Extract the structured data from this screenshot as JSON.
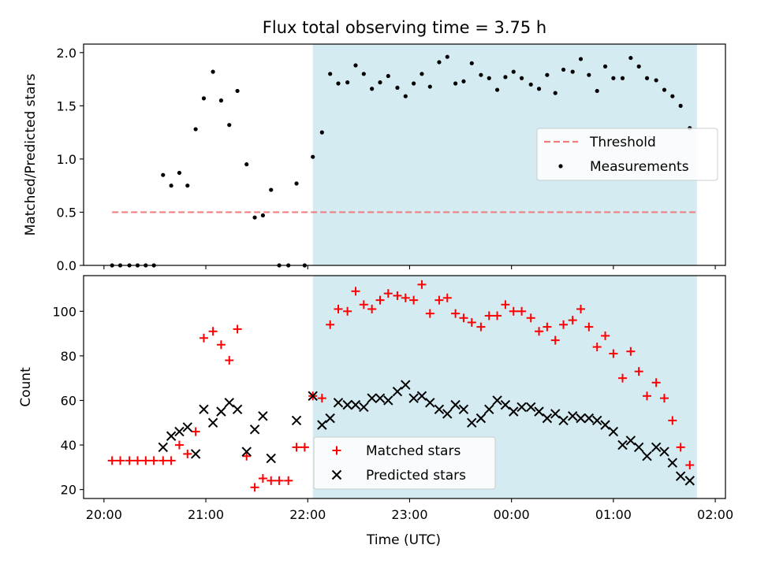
{
  "chart_data": {
    "title": "Flux total observing time = 3.75 h",
    "xlabel": "Time (UTC)",
    "x_unit": "hours past 20:00 UTC",
    "xlim": [
      -0.2,
      6.1
    ],
    "x_ticks": [
      {
        "x": 0,
        "label": "20:00"
      },
      {
        "x": 1,
        "label": "21:00"
      },
      {
        "x": 2,
        "label": "22:00"
      },
      {
        "x": 3,
        "label": "23:00"
      },
      {
        "x": 4,
        "label": "00:00"
      },
      {
        "x": 5,
        "label": "01:00"
      },
      {
        "x": 6,
        "label": "02:00"
      }
    ],
    "shaded_region": {
      "x_start": 2.05,
      "x_end": 5.82,
      "color": "#add8e6"
    },
    "panels": [
      {
        "type": "scatter",
        "ylabel": "Matched/Predicted stars",
        "ylim": [
          0,
          2.08
        ],
        "y_ticks": [
          0.0,
          0.5,
          1.0,
          1.5,
          2.0
        ],
        "y_tick_labels": [
          "0.0",
          "0.5",
          "1.0",
          "1.5",
          "2.0"
        ],
        "legend": {
          "position": "center-right",
          "entries": [
            "Threshold",
            "Measurements"
          ]
        },
        "threshold": {
          "name": "Threshold",
          "y": 0.5,
          "x_start": 0.08,
          "x_end": 5.82,
          "color": "#f08080"
        },
        "series": [
          {
            "name": "Measurements",
            "marker": "dot",
            "color": "#000000",
            "points": [
              [
                0.08,
                0.0
              ],
              [
                0.16,
                0.0
              ],
              [
                0.25,
                0.0
              ],
              [
                0.33,
                0.0
              ],
              [
                0.41,
                0.0
              ],
              [
                0.49,
                0.0
              ],
              [
                0.58,
                0.85
              ],
              [
                0.66,
                0.75
              ],
              [
                0.74,
                0.87
              ],
              [
                0.82,
                0.75
              ],
              [
                0.9,
                1.28
              ],
              [
                0.98,
                1.57
              ],
              [
                1.07,
                1.82
              ],
              [
                1.15,
                1.55
              ],
              [
                1.23,
                1.32
              ],
              [
                1.31,
                1.64
              ],
              [
                1.4,
                0.95
              ],
              [
                1.48,
                0.45
              ],
              [
                1.56,
                0.47
              ],
              [
                1.64,
                0.71
              ],
              [
                1.72,
                0.0
              ],
              [
                1.81,
                0.0
              ],
              [
                1.89,
                0.77
              ],
              [
                1.97,
                0.0
              ],
              [
                2.05,
                1.02
              ],
              [
                2.14,
                1.25
              ],
              [
                2.22,
                1.8
              ],
              [
                2.3,
                1.71
              ],
              [
                2.39,
                1.72
              ],
              [
                2.47,
                1.88
              ],
              [
                2.55,
                1.8
              ],
              [
                2.63,
                1.66
              ],
              [
                2.71,
                1.72
              ],
              [
                2.79,
                1.78
              ],
              [
                2.88,
                1.67
              ],
              [
                2.96,
                1.59
              ],
              [
                3.04,
                1.71
              ],
              [
                3.12,
                1.8
              ],
              [
                3.2,
                1.68
              ],
              [
                3.29,
                1.91
              ],
              [
                3.37,
                1.96
              ],
              [
                3.45,
                1.71
              ],
              [
                3.53,
                1.73
              ],
              [
                3.61,
                1.9
              ],
              [
                3.7,
                1.79
              ],
              [
                3.78,
                1.76
              ],
              [
                3.86,
                1.65
              ],
              [
                3.94,
                1.77
              ],
              [
                4.02,
                1.82
              ],
              [
                4.1,
                1.76
              ],
              [
                4.19,
                1.7
              ],
              [
                4.27,
                1.66
              ],
              [
                4.35,
                1.79
              ],
              [
                4.43,
                1.62
              ],
              [
                4.51,
                1.84
              ],
              [
                4.6,
                1.82
              ],
              [
                4.68,
                1.94
              ],
              [
                4.76,
                1.79
              ],
              [
                4.84,
                1.64
              ],
              [
                4.92,
                1.87
              ],
              [
                5.0,
                1.76
              ],
              [
                5.09,
                1.76
              ],
              [
                5.17,
                1.95
              ],
              [
                5.25,
                1.87
              ],
              [
                5.33,
                1.76
              ],
              [
                5.42,
                1.74
              ],
              [
                5.5,
                1.65
              ],
              [
                5.58,
                1.59
              ],
              [
                5.66,
                1.5
              ],
              [
                5.75,
                1.29
              ]
            ]
          }
        ]
      },
      {
        "type": "scatter",
        "ylabel": "Count",
        "ylim": [
          16,
          116
        ],
        "y_ticks": [
          20,
          40,
          60,
          80,
          100
        ],
        "y_tick_labels": [
          "20",
          "40",
          "60",
          "80",
          "100"
        ],
        "legend": {
          "position": "lower-center",
          "entries": [
            "Matched stars",
            "Predicted stars"
          ]
        },
        "series": [
          {
            "name": "Matched stars",
            "marker": "plus",
            "color": "#ff0000",
            "points": [
              [
                0.08,
                33
              ],
              [
                0.16,
                33
              ],
              [
                0.25,
                33
              ],
              [
                0.33,
                33
              ],
              [
                0.41,
                33
              ],
              [
                0.49,
                33
              ],
              [
                0.58,
                33
              ],
              [
                0.66,
                33
              ],
              [
                0.74,
                40
              ],
              [
                0.82,
                36
              ],
              [
                0.9,
                46
              ],
              [
                0.98,
                88
              ],
              [
                1.07,
                91
              ],
              [
                1.15,
                85
              ],
              [
                1.23,
                78
              ],
              [
                1.31,
                92
              ],
              [
                1.4,
                35
              ],
              [
                1.48,
                21
              ],
              [
                1.56,
                25
              ],
              [
                1.64,
                24
              ],
              [
                1.72,
                24
              ],
              [
                1.81,
                24
              ],
              [
                1.89,
                39
              ],
              [
                1.97,
                39
              ],
              [
                2.05,
                62
              ],
              [
                2.14,
                61
              ],
              [
                2.22,
                94
              ],
              [
                2.3,
                101
              ],
              [
                2.39,
                100
              ],
              [
                2.47,
                109
              ],
              [
                2.55,
                103
              ],
              [
                2.63,
                101
              ],
              [
                2.71,
                105
              ],
              [
                2.79,
                108
              ],
              [
                2.88,
                107
              ],
              [
                2.96,
                106
              ],
              [
                3.04,
                105
              ],
              [
                3.12,
                112
              ],
              [
                3.2,
                99
              ],
              [
                3.29,
                105
              ],
              [
                3.37,
                106
              ],
              [
                3.45,
                99
              ],
              [
                3.53,
                97
              ],
              [
                3.61,
                95
              ],
              [
                3.7,
                93
              ],
              [
                3.78,
                98
              ],
              [
                3.86,
                98
              ],
              [
                3.94,
                103
              ],
              [
                4.02,
                100
              ],
              [
                4.1,
                100
              ],
              [
                4.19,
                97
              ],
              [
                4.27,
                91
              ],
              [
                4.35,
                93
              ],
              [
                4.43,
                87
              ],
              [
                4.51,
                94
              ],
              [
                4.6,
                96
              ],
              [
                4.68,
                101
              ],
              [
                4.76,
                93
              ],
              [
                4.84,
                84
              ],
              [
                4.92,
                89
              ],
              [
                5.0,
                81
              ],
              [
                5.09,
                70
              ],
              [
                5.17,
                82
              ],
              [
                5.25,
                73
              ],
              [
                5.33,
                62
              ],
              [
                5.42,
                68
              ],
              [
                5.5,
                61
              ],
              [
                5.58,
                51
              ],
              [
                5.66,
                39
              ],
              [
                5.75,
                31
              ]
            ]
          },
          {
            "name": "Predicted stars",
            "marker": "x",
            "color": "#000000",
            "points": [
              [
                0.58,
                39
              ],
              [
                0.66,
                44
              ],
              [
                0.74,
                46
              ],
              [
                0.82,
                48
              ],
              [
                0.9,
                36
              ],
              [
                0.98,
                56
              ],
              [
                1.07,
                50
              ],
              [
                1.15,
                55
              ],
              [
                1.23,
                59
              ],
              [
                1.31,
                56
              ],
              [
                1.4,
                37
              ],
              [
                1.48,
                47
              ],
              [
                1.56,
                53
              ],
              [
                1.64,
                34
              ],
              [
                1.89,
                51
              ],
              [
                2.05,
                62
              ],
              [
                2.14,
                49
              ],
              [
                2.22,
                52
              ],
              [
                2.3,
                59
              ],
              [
                2.39,
                58
              ],
              [
                2.47,
                58
              ],
              [
                2.55,
                57
              ],
              [
                2.63,
                61
              ],
              [
                2.71,
                61
              ],
              [
                2.79,
                60
              ],
              [
                2.88,
                64
              ],
              [
                2.96,
                67
              ],
              [
                3.04,
                61
              ],
              [
                3.12,
                62
              ],
              [
                3.2,
                59
              ],
              [
                3.29,
                56
              ],
              [
                3.37,
                54
              ],
              [
                3.45,
                58
              ],
              [
                3.53,
                56
              ],
              [
                3.61,
                50
              ],
              [
                3.7,
                52
              ],
              [
                3.78,
                56
              ],
              [
                3.86,
                60
              ],
              [
                3.94,
                58
              ],
              [
                4.02,
                55
              ],
              [
                4.1,
                57
              ],
              [
                4.19,
                57
              ],
              [
                4.27,
                55
              ],
              [
                4.35,
                52
              ],
              [
                4.43,
                54
              ],
              [
                4.51,
                51
              ],
              [
                4.6,
                53
              ],
              [
                4.68,
                52
              ],
              [
                4.76,
                52
              ],
              [
                4.84,
                51
              ],
              [
                4.92,
                49
              ],
              [
                5.0,
                46
              ],
              [
                5.09,
                40
              ],
              [
                5.17,
                42
              ],
              [
                5.25,
                39
              ],
              [
                5.33,
                35
              ],
              [
                5.42,
                39
              ],
              [
                5.5,
                37
              ],
              [
                5.58,
                32
              ],
              [
                5.66,
                26
              ],
              [
                5.75,
                24
              ]
            ]
          }
        ]
      }
    ]
  }
}
